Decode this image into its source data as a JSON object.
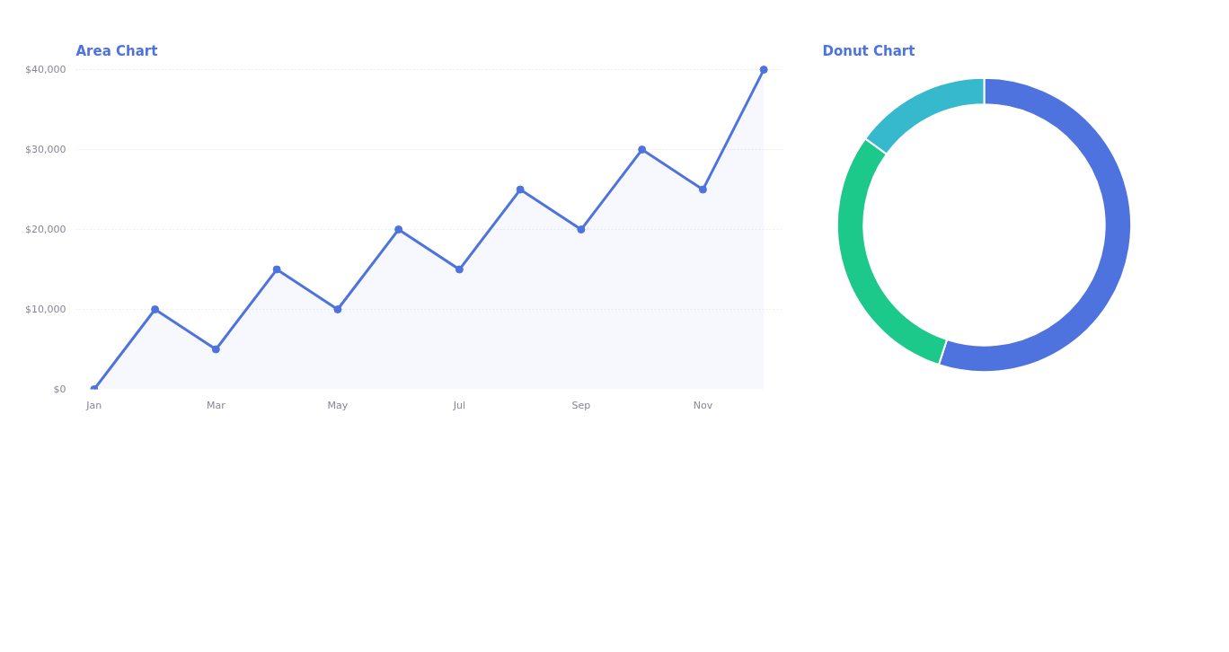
{
  "chart_data": [
    {
      "type": "area",
      "title": "Area Chart",
      "categories": [
        "Jan",
        null,
        "Mar",
        null,
        "May",
        null,
        "Jul",
        null,
        "Sep",
        null,
        "Nov",
        null
      ],
      "series": [
        {
          "color": "#4e73df",
          "values": [
            0,
            10000,
            5000,
            15000,
            10000,
            20000,
            15000,
            25000,
            20000,
            30000,
            25000,
            40000
          ]
        }
      ],
      "ylim": [
        0,
        40000
      ],
      "yticks": [
        {
          "value": 0,
          "label": "$0"
        },
        {
          "value": 10000,
          "label": "$10,000"
        },
        {
          "value": 20000,
          "label": "$20,000"
        },
        {
          "value": 30000,
          "label": "$30,000"
        },
        {
          "value": 40000,
          "label": "$40,000"
        }
      ],
      "grid": "y",
      "marker": "circle",
      "line_style": "solid"
    },
    {
      "type": "donut",
      "title": "Donut Chart",
      "categories": [
        null,
        null,
        null
      ],
      "values": [
        55,
        30,
        15
      ],
      "colors": [
        "#4e73df",
        "#1cc88a",
        "#36b9cc"
      ]
    }
  ]
}
